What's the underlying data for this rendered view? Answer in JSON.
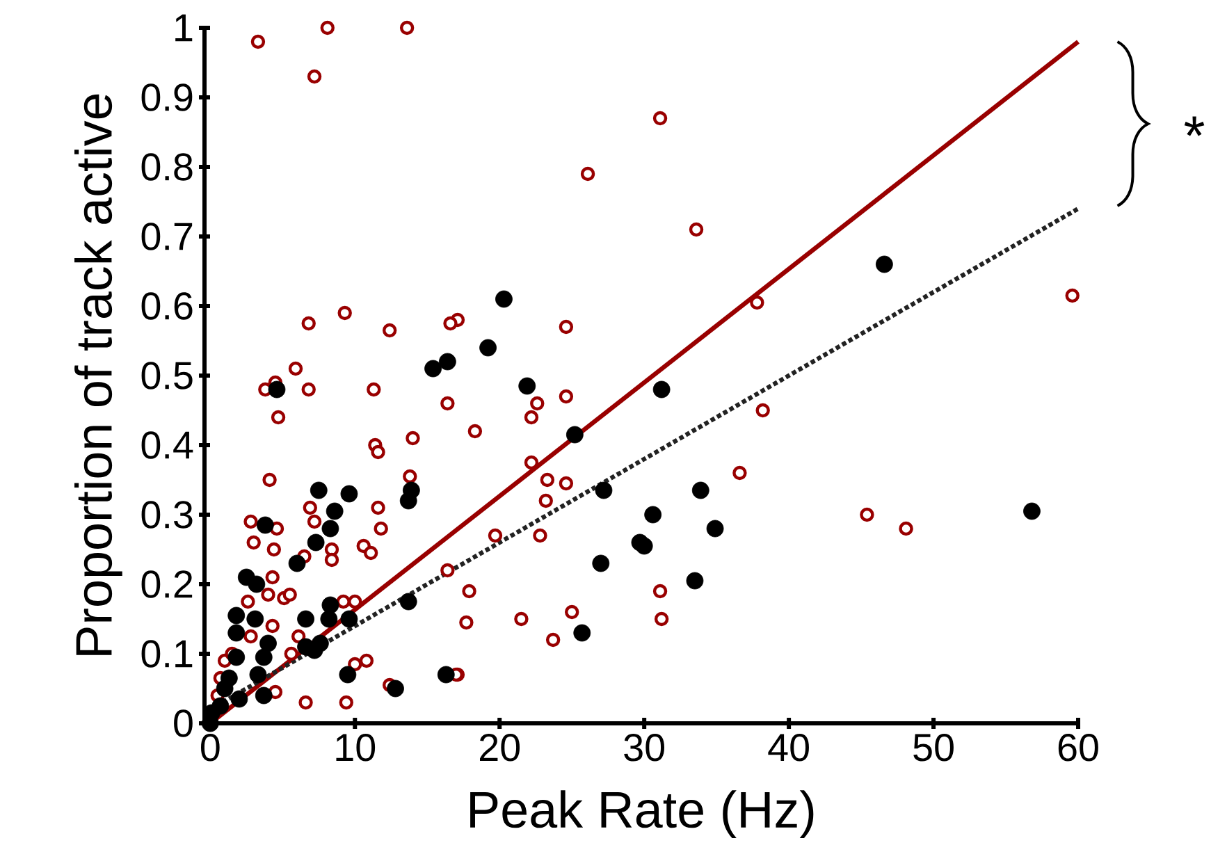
{
  "chart_data": {
    "type": "scatter",
    "xlabel": "Peak Rate (Hz)",
    "ylabel": "Proportion of track active",
    "xlim": [
      -0.4,
      60
    ],
    "ylim": [
      0,
      1
    ],
    "xticks": [
      0,
      10,
      20,
      30,
      40,
      50,
      60
    ],
    "yticks": [
      0,
      0.1,
      0.2,
      0.3,
      0.4,
      0.5,
      0.6,
      0.7,
      0.8,
      0.9,
      1
    ],
    "annotations": [
      "*"
    ],
    "series": [
      {
        "marker": "circle",
        "color": "#990000",
        "x": [
          3.3,
          7.2,
          8.1,
          13.6,
          31.1,
          26.1,
          33.6,
          24.6,
          17.1,
          37.8,
          24.6,
          22.6,
          22.2,
          18.3,
          38.2,
          22.2,
          23.3,
          24.6,
          23.2,
          36.6,
          19.7,
          22.8,
          45.4,
          48.1,
          59.6,
          17.9,
          17.7,
          21.5,
          25.0,
          23.7,
          31.1,
          31.2,
          17.1,
          6.8,
          9.3,
          12.4,
          16.6,
          5.9,
          4.5,
          3.8,
          6.8,
          11.3,
          4.7,
          16.4,
          11.4,
          11.6,
          14.0,
          4.1,
          13.8,
          6.9,
          7.2,
          2.8,
          3.0,
          4.4,
          4.6,
          11.6,
          11.8,
          10.6,
          11.1,
          8.4,
          8.4,
          6.5,
          4.3,
          4.0,
          5.1,
          5.5,
          2.6,
          9.2,
          10.0,
          4.3,
          2.8,
          6.1,
          5.6,
          10.0,
          10.8,
          6.6,
          9.4,
          12.4,
          17.0,
          1.0,
          0.7,
          4.5,
          16.4,
          0.5,
          1.5
        ],
        "values": [
          0.98,
          0.93,
          1.0,
          1.0,
          0.87,
          0.79,
          0.71,
          0.57,
          0.58,
          0.605,
          0.47,
          0.46,
          0.44,
          0.42,
          0.45,
          0.375,
          0.35,
          0.345,
          0.32,
          0.36,
          0.27,
          0.27,
          0.3,
          0.28,
          0.615,
          0.19,
          0.145,
          0.15,
          0.16,
          0.12,
          0.19,
          0.15,
          0.07,
          0.575,
          0.59,
          0.565,
          0.575,
          0.51,
          0.49,
          0.48,
          0.48,
          0.48,
          0.44,
          0.46,
          0.4,
          0.39,
          0.41,
          0.35,
          0.355,
          0.31,
          0.29,
          0.29,
          0.26,
          0.25,
          0.28,
          0.31,
          0.28,
          0.255,
          0.245,
          0.25,
          0.235,
          0.24,
          0.21,
          0.185,
          0.18,
          0.185,
          0.175,
          0.175,
          0.175,
          0.14,
          0.125,
          0.125,
          0.1,
          0.085,
          0.09,
          0.03,
          0.03,
          0.055,
          0.07,
          0.09,
          0.065,
          0.045,
          0.22,
          0.04,
          0.1
        ]
      },
      {
        "marker": "circle",
        "color": "#000000",
        "x": [
          20.3,
          19.2,
          21.9,
          31.2,
          25.2,
          46.6,
          27.2,
          33.9,
          30.6,
          34.9,
          29.7,
          30.0,
          27.0,
          33.5,
          56.8,
          25.7,
          4.6,
          15.4,
          16.4,
          7.5,
          9.6,
          8.6,
          8.3,
          7.3,
          6.0,
          13.9,
          13.7,
          3.8,
          2.5,
          3.2,
          1.8,
          3.1,
          1.8,
          6.6,
          8.3,
          8.2,
          9.6,
          13.7,
          4.0,
          6.6,
          7.6,
          7.2,
          1.8,
          3.7,
          3.3,
          9.5,
          12.8,
          16.3,
          1.3,
          1.0,
          2.0,
          3.7,
          0.7,
          0.1,
          0.0
        ],
        "values": [
          0.61,
          0.54,
          0.485,
          0.48,
          0.415,
          0.66,
          0.335,
          0.335,
          0.3,
          0.28,
          0.26,
          0.255,
          0.23,
          0.205,
          0.305,
          0.13,
          0.48,
          0.51,
          0.52,
          0.335,
          0.33,
          0.305,
          0.28,
          0.26,
          0.23,
          0.335,
          0.32,
          0.285,
          0.21,
          0.2,
          0.155,
          0.15,
          0.13,
          0.15,
          0.17,
          0.15,
          0.15,
          0.175,
          0.115,
          0.11,
          0.115,
          0.105,
          0.095,
          0.095,
          0.07,
          0.07,
          0.05,
          0.07,
          0.065,
          0.05,
          0.035,
          0.04,
          0.025,
          0.015,
          0.0
        ]
      },
      {
        "type": "line",
        "marker": "none",
        "line_style": "solid",
        "color": "#990000",
        "x": [
          0,
          60
        ],
        "values": [
          0.0,
          0.98
        ]
      },
      {
        "type": "line",
        "marker": "none",
        "line_style": "dotted",
        "color": "#222222",
        "x": [
          0,
          60
        ],
        "values": [
          0.02,
          0.74
        ]
      }
    ]
  }
}
